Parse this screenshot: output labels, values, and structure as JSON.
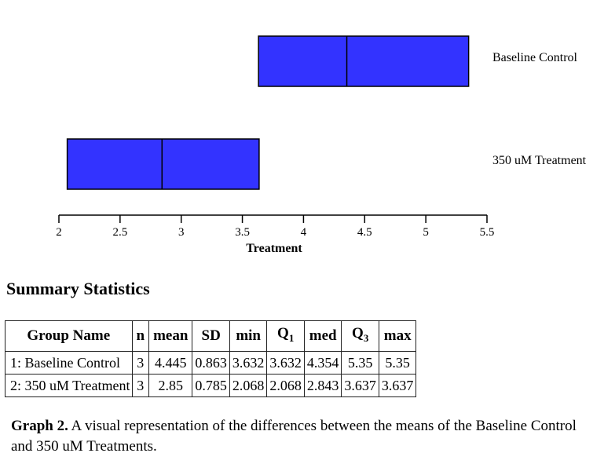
{
  "chart_data": {
    "type": "boxplot",
    "xlabel": "Treatment",
    "xlim": [
      2,
      5.5
    ],
    "ticks": [
      "2",
      "2.5",
      "3",
      "3.5",
      "4",
      "4.5",
      "5",
      "5.5"
    ],
    "series": [
      {
        "name": "Baseline Control",
        "min": 3.632,
        "q1": 3.632,
        "median": 4.354,
        "q3": 5.35,
        "max": 5.35,
        "color": "#3333ff"
      },
      {
        "name": "350 uM Treatment",
        "min": 2.068,
        "q1": 2.068,
        "median": 2.843,
        "q3": 3.637,
        "max": 3.637,
        "color": "#3333ff"
      }
    ]
  },
  "summary": {
    "heading": "Summary Statistics",
    "headers": [
      "Group Name",
      "n",
      "mean",
      "SD",
      "min",
      "Q1",
      "med",
      "Q3",
      "max"
    ],
    "rows": [
      [
        "1: Baseline Control",
        "3",
        "4.445",
        "0.863",
        "3.632",
        "3.632",
        "4.354",
        "5.35",
        "5.35"
      ],
      [
        "2: 350 uM Treatment",
        "3",
        "2.85",
        "0.785",
        "2.068",
        "2.068",
        "2.843",
        "3.637",
        "3.637"
      ]
    ]
  },
  "caption": {
    "bold": "Graph 2.",
    "text": " A visual representation of the differences between the means of the Baseline Control and 350 uM Treatments."
  }
}
